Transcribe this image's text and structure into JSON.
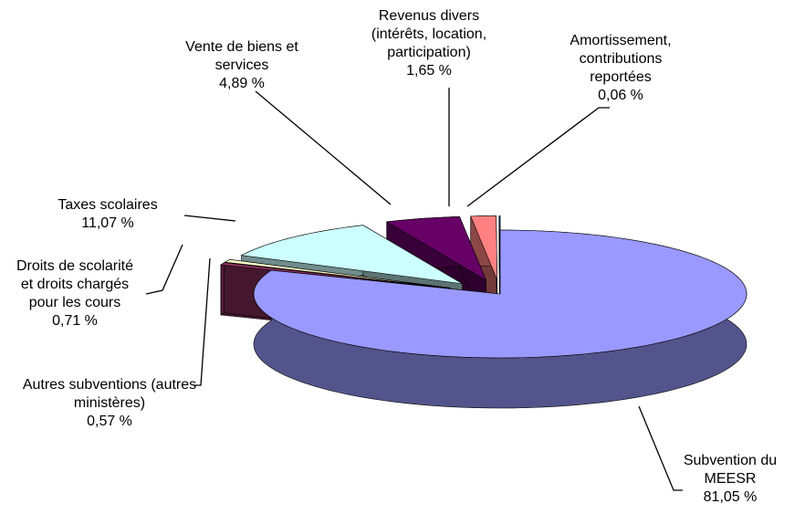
{
  "chart_data": {
    "type": "pie",
    "categories": [
      "Subvention du MEESR",
      "Autres subventions (autres ministères)",
      "Droits de scolarité et droits chargés pour les cours",
      "Taxes scolaires",
      "Vente de biens et services",
      "Revenus divers (intérêts, location, participation)",
      "Amortissement, contributions reportées"
    ],
    "values": [
      81.05,
      0.57,
      0.71,
      11.07,
      4.89,
      1.65,
      0.06
    ],
    "value_labels": [
      "81,05 %",
      "0,57 %",
      "0,71 %",
      "11,07 %",
      "4,89 %",
      "1,65 %",
      "0,06 %"
    ],
    "colors": [
      "#9999ff",
      "#993366",
      "#ffffcc",
      "#ccffff",
      "#660066",
      "#ff8080",
      "#0066cc"
    ]
  }
}
